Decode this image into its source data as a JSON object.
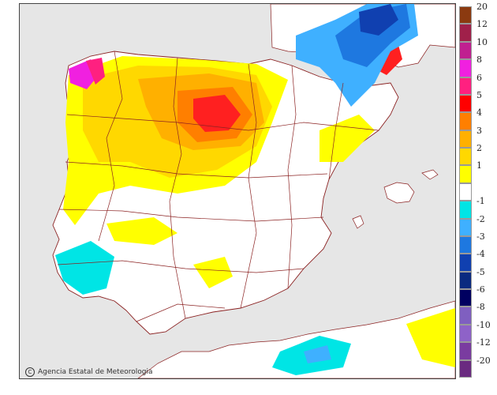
{
  "credit": "Agencia Estatal de Meteorologia",
  "credit_symbol": "C",
  "colors": {
    "sea": "#e6e6e6",
    "land": "#ffffff",
    "border": "#8b2222"
  },
  "legend": [
    {
      "label": "20",
      "color": "#8b3a10"
    },
    {
      "label": "12",
      "color": "#a0204a"
    },
    {
      "label": "10",
      "color": "#c02090"
    },
    {
      "label": "8",
      "color": "#f020e0"
    },
    {
      "label": "6",
      "color": "#ff2080"
    },
    {
      "label": "5",
      "color": "#ff0000"
    },
    {
      "label": "4",
      "color": "#ff7f00"
    },
    {
      "label": "3",
      "color": "#ffb000"
    },
    {
      "label": "2",
      "color": "#ffd800"
    },
    {
      "label": "1",
      "color": "#ffff00"
    },
    {
      "label": "",
      "color": "#ffffff"
    },
    {
      "label": "-1",
      "color": "#00e5e5"
    },
    {
      "label": "-2",
      "color": "#3fb0ff"
    },
    {
      "label": "-3",
      "color": "#1e78e0"
    },
    {
      "label": "-4",
      "color": "#1040b0"
    },
    {
      "label": "-5",
      "color": "#0a2a80"
    },
    {
      "label": "-6",
      "color": "#000060"
    },
    {
      "label": "-8",
      "color": "#7f5fc0"
    },
    {
      "label": "-10",
      "color": "#8e62c8"
    },
    {
      "label": "-12",
      "color": "#7a3ca0"
    },
    {
      "label": "-20",
      "color": "#6a2a80"
    }
  ]
}
